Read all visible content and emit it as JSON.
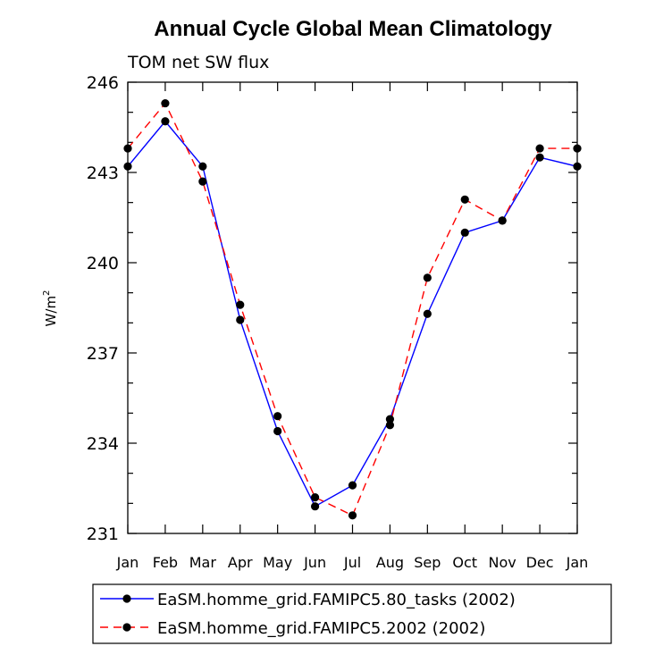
{
  "chart_data": {
    "type": "line",
    "title": "Annual Cycle Global Mean Climatology",
    "subtitle": "TOM net SW flux",
    "xlabel": "",
    "ylabel": "W/m",
    "ylabel_superscript": "2",
    "categories": [
      "Jan",
      "Feb",
      "Mar",
      "Apr",
      "May",
      "Jun",
      "Jul",
      "Aug",
      "Sep",
      "Oct",
      "Nov",
      "Dec",
      "Jan"
    ],
    "ylim": [
      231,
      246
    ],
    "yticks": [
      231,
      234,
      237,
      240,
      243,
      246
    ],
    "series": [
      {
        "name": "EaSM.homme_grid.FAMIPC5.80_tasks (2002)",
        "color": "#0000ff",
        "dash": "solid",
        "values": [
          243.2,
          244.7,
          243.2,
          238.1,
          234.4,
          231.9,
          232.6,
          234.8,
          238.3,
          241.0,
          241.4,
          243.5,
          243.2
        ]
      },
      {
        "name": "EaSM.homme_grid.FAMIPC5.2002 (2002)",
        "color": "#ff0000",
        "dash": "dashed",
        "values": [
          243.8,
          245.3,
          242.7,
          238.6,
          234.9,
          232.2,
          231.6,
          234.6,
          239.5,
          242.1,
          241.4,
          243.8,
          243.8
        ]
      }
    ]
  }
}
